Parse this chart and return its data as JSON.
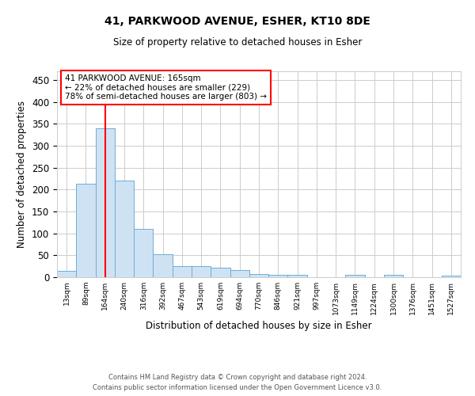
{
  "title1": "41, PARKWOOD AVENUE, ESHER, KT10 8DE",
  "title2": "Size of property relative to detached houses in Esher",
  "xlabel": "Distribution of detached houses by size in Esher",
  "ylabel": "Number of detached properties",
  "categories": [
    "13sqm",
    "89sqm",
    "164sqm",
    "240sqm",
    "316sqm",
    "392sqm",
    "467sqm",
    "543sqm",
    "619sqm",
    "694sqm",
    "770sqm",
    "846sqm",
    "921sqm",
    "997sqm",
    "1073sqm",
    "1149sqm",
    "1224sqm",
    "1300sqm",
    "1376sqm",
    "1451sqm",
    "1527sqm"
  ],
  "values": [
    15,
    213,
    340,
    220,
    110,
    53,
    25,
    25,
    22,
    17,
    8,
    5,
    5,
    0,
    0,
    5,
    0,
    5,
    0,
    0,
    3
  ],
  "bar_color": "#cfe2f3",
  "bar_edge_color": "#6baed6",
  "red_line_index": 2,
  "ylim": [
    0,
    470
  ],
  "yticks": [
    0,
    50,
    100,
    150,
    200,
    250,
    300,
    350,
    400,
    450
  ],
  "annotation_line1": "41 PARKWOOD AVENUE: 165sqm",
  "annotation_line2": "← 22% of detached houses are smaller (229)",
  "annotation_line3": "78% of semi-detached houses are larger (803) →",
  "footnote1": "Contains HM Land Registry data © Crown copyright and database right 2024.",
  "footnote2": "Contains public sector information licensed under the Open Government Licence v3.0.",
  "background_color": "#ffffff",
  "grid_color": "#cccccc"
}
